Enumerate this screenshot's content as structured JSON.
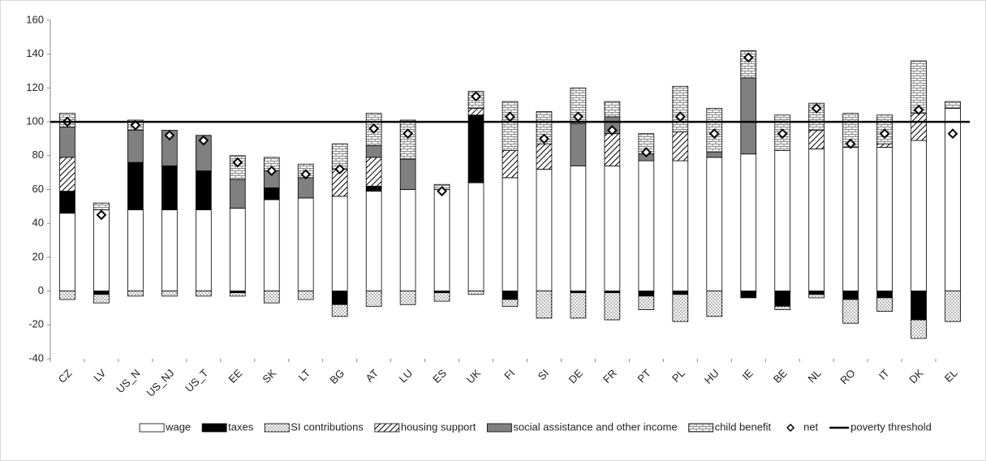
{
  "chart_data": {
    "type": "bar",
    "stacked": true,
    "categories": [
      "CZ",
      "LV",
      "US_N",
      "US_NJ",
      "US_T",
      "EE",
      "SK",
      "LT",
      "BG",
      "AT",
      "LU",
      "ES",
      "UK",
      "FI",
      "SI",
      "DE",
      "FR",
      "PT",
      "PL",
      "HU",
      "IE",
      "BE",
      "NL",
      "RO",
      "IT",
      "DK",
      "EL"
    ],
    "series": [
      {
        "name": "wage",
        "color": "#ffffff",
        "values": [
          46,
          48,
          48,
          48,
          48,
          49,
          54,
          55,
          56,
          59,
          60,
          60,
          64,
          67,
          72,
          74,
          74,
          77,
          77,
          79,
          81,
          83,
          84,
          85,
          85,
          89,
          108
        ]
      },
      {
        "name": "taxes",
        "color": "#000000",
        "values": [
          13,
          -2,
          28,
          26,
          23,
          -1,
          7,
          0,
          -8,
          3,
          0,
          -1,
          40,
          -5,
          0,
          -1,
          -1,
          -3,
          -2,
          0,
          -4,
          -9,
          -2,
          -5,
          -4,
          -17,
          0
        ]
      },
      {
        "name": "SI contributions",
        "color": "#ffffff",
        "pattern": "dots",
        "values": [
          -5,
          -5,
          -3,
          -3,
          -3,
          -2,
          -7,
          -5,
          -7,
          -9,
          -8,
          -5,
          -2,
          -4,
          -16,
          -15,
          -16,
          -8,
          -16,
          -15,
          0,
          -2,
          -2,
          -14,
          -8,
          -11,
          -18
        ]
      },
      {
        "name": "housing support",
        "color": "#ffffff",
        "pattern": "hatch",
        "values": [
          20,
          0,
          0,
          0,
          0,
          0,
          0,
          0,
          16,
          17,
          0,
          0,
          4,
          16,
          15,
          0,
          19,
          0,
          17,
          0,
          0,
          0,
          11,
          0,
          2,
          16,
          0
        ]
      },
      {
        "name": "social assistance and other income",
        "color": "#808080",
        "values": [
          18,
          0,
          19,
          21,
          21,
          17,
          10,
          12,
          0,
          7,
          18,
          0,
          0,
          0,
          0,
          25,
          10,
          4,
          0,
          3,
          45,
          0,
          0,
          0,
          0,
          0,
          0
        ]
      },
      {
        "name": "child benefit",
        "color": "#ffffff",
        "pattern": "brick",
        "values": [
          8,
          4,
          6,
          0,
          0,
          14,
          8,
          8,
          15,
          19,
          23,
          3,
          10,
          29,
          19,
          21,
          9,
          12,
          27,
          26,
          16,
          21,
          16,
          20,
          17,
          31,
          4
        ]
      },
      {
        "name": "net",
        "color": "#000000",
        "marker": "diamond",
        "values": [
          100,
          45,
          98,
          92,
          89,
          76,
          71,
          69,
          72,
          96,
          93,
          59,
          115,
          103,
          90,
          103,
          95,
          82,
          103,
          93,
          138,
          93,
          108,
          87,
          93,
          107,
          93
        ]
      },
      {
        "name": "poverty threshold",
        "color": "#000000",
        "marker": "line",
        "value": 100
      }
    ],
    "ylim": [
      -40,
      160
    ],
    "yticks": [
      -40,
      -20,
      0,
      20,
      40,
      60,
      80,
      100,
      120,
      140,
      160
    ],
    "grid": false
  }
}
